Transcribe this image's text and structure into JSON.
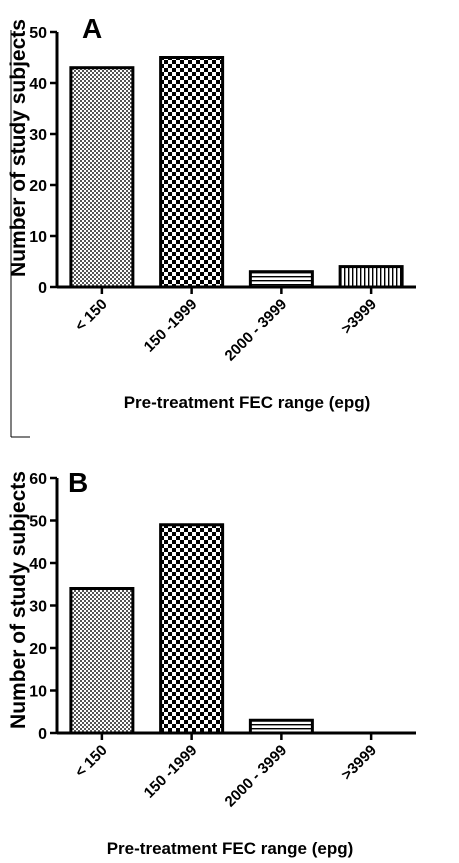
{
  "chart_data": [
    {
      "type": "bar",
      "panel_label": "A",
      "xlabel": "Pre-treatment FEC range  (epg)",
      "ylabel": "Number of study subjects",
      "categories": [
        "< 150",
        "150 -1999",
        "2000 - 3999",
        ">3999"
      ],
      "values": [
        43,
        45,
        3,
        4
      ],
      "ylim": [
        0,
        50
      ],
      "yticks": [
        0,
        10,
        20,
        30,
        40,
        50
      ],
      "bar_patterns": [
        "fine-check",
        "coarse-check",
        "horizontal-stripes",
        "vertical-stripes"
      ],
      "grid": false,
      "legend": "none"
    },
    {
      "type": "bar",
      "panel_label": "B",
      "xlabel": "Pre-treatment FEC range  (epg)",
      "ylabel": "Number of study subjects",
      "categories": [
        "< 150",
        "150 -1999",
        "2000 - 3999",
        ">3999"
      ],
      "values": [
        34,
        49,
        3,
        0
      ],
      "ylim": [
        0,
        60
      ],
      "yticks": [
        0,
        10,
        20,
        30,
        40,
        50,
        60
      ],
      "bar_patterns": [
        "fine-check",
        "coarse-check",
        "horizontal-stripes",
        "vertical-stripes"
      ],
      "grid": false,
      "legend": "none"
    }
  ]
}
